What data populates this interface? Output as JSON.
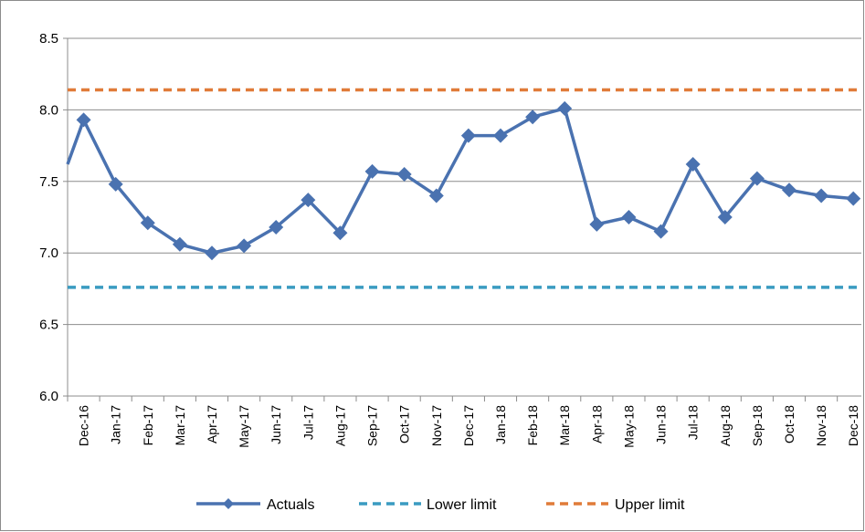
{
  "chart_data": {
    "type": "line",
    "categories": [
      "Dec-16",
      "Jan-17",
      "Feb-17",
      "Mar-17",
      "Apr-17",
      "May-17",
      "Jun-17",
      "Jul-17",
      "Aug-17",
      "Sep-17",
      "Oct-17",
      "Nov-17",
      "Dec-17",
      "Jan-18",
      "Feb-18",
      "Mar-18",
      "Apr-18",
      "May-18",
      "Jun-18",
      "Jul-18",
      "Aug-18",
      "Sep-18",
      "Oct-18",
      "Nov-18",
      "Dec-18"
    ],
    "series": [
      {
        "name": "Actuals",
        "style": "solid",
        "marker": "diamond",
        "color": "#4a72b0",
        "values": [
          7.93,
          7.48,
          7.21,
          7.06,
          7.0,
          7.05,
          7.18,
          7.37,
          7.14,
          7.57,
          7.55,
          7.4,
          7.82,
          7.82,
          7.95,
          8.01,
          7.2,
          7.25,
          7.15,
          7.62,
          7.25,
          7.52,
          7.44,
          7.4,
          7.38
        ]
      },
      {
        "name": "Lower limit",
        "style": "dashed",
        "color": "#3a9bc1",
        "value": 6.76
      },
      {
        "name": "Upper limit",
        "style": "dashed",
        "color": "#e07b39",
        "value": 8.14
      }
    ],
    "left_edge_value": 7.62,
    "title": "",
    "xlabel": "",
    "ylabel": "",
    "ylim": [
      6.0,
      8.5
    ],
    "yticks": [
      "6.0",
      "6.5",
      "7.0",
      "7.5",
      "8.0",
      "8.5"
    ],
    "grid": "horizontal",
    "legend_position": "bottom"
  }
}
